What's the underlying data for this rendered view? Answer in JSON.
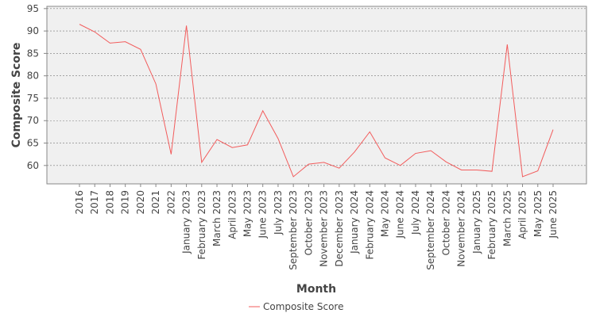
{
  "chart_data": {
    "type": "line",
    "y_label": "Composite Score",
    "x_label": "Month",
    "categories": [
      "2016",
      "2017",
      "2018",
      "2019",
      "2020",
      "2021",
      "2022",
      "January 2023",
      "February 2023",
      "March 2023",
      "April 2023",
      "May 2023",
      "June 2023",
      "July 2023",
      "September 2023",
      "October 2023",
      "November 2023",
      "December 2023",
      "January 2024",
      "February 2024",
      "May 2024",
      "June 2024",
      "July 2024",
      "September 2024",
      "October 2024",
      "November 2024",
      "January 2025",
      "February 2025",
      "March 2025",
      "April 2025",
      "May 2025",
      "June 2025"
    ],
    "series": [
      {
        "name": "Composite Score",
        "color": "#f25c5c",
        "values": [
          91.5,
          89.8,
          87.3,
          87.6,
          85.9,
          78.2,
          62.5,
          91.2,
          60.7,
          65.8,
          64.0,
          64.6,
          72.2,
          66.0,
          57.5,
          60.3,
          60.7,
          59.4,
          63.0,
          67.5,
          61.7,
          60.0,
          62.7,
          63.3,
          60.8,
          59.0,
          59.0,
          58.7,
          87.0,
          57.5,
          58.8,
          68.0
        ]
      }
    ],
    "ylim": [
      55.9,
      95.5
    ],
    "yticks": [
      60,
      65,
      70,
      75,
      80,
      85,
      90,
      95
    ],
    "grid": true
  }
}
